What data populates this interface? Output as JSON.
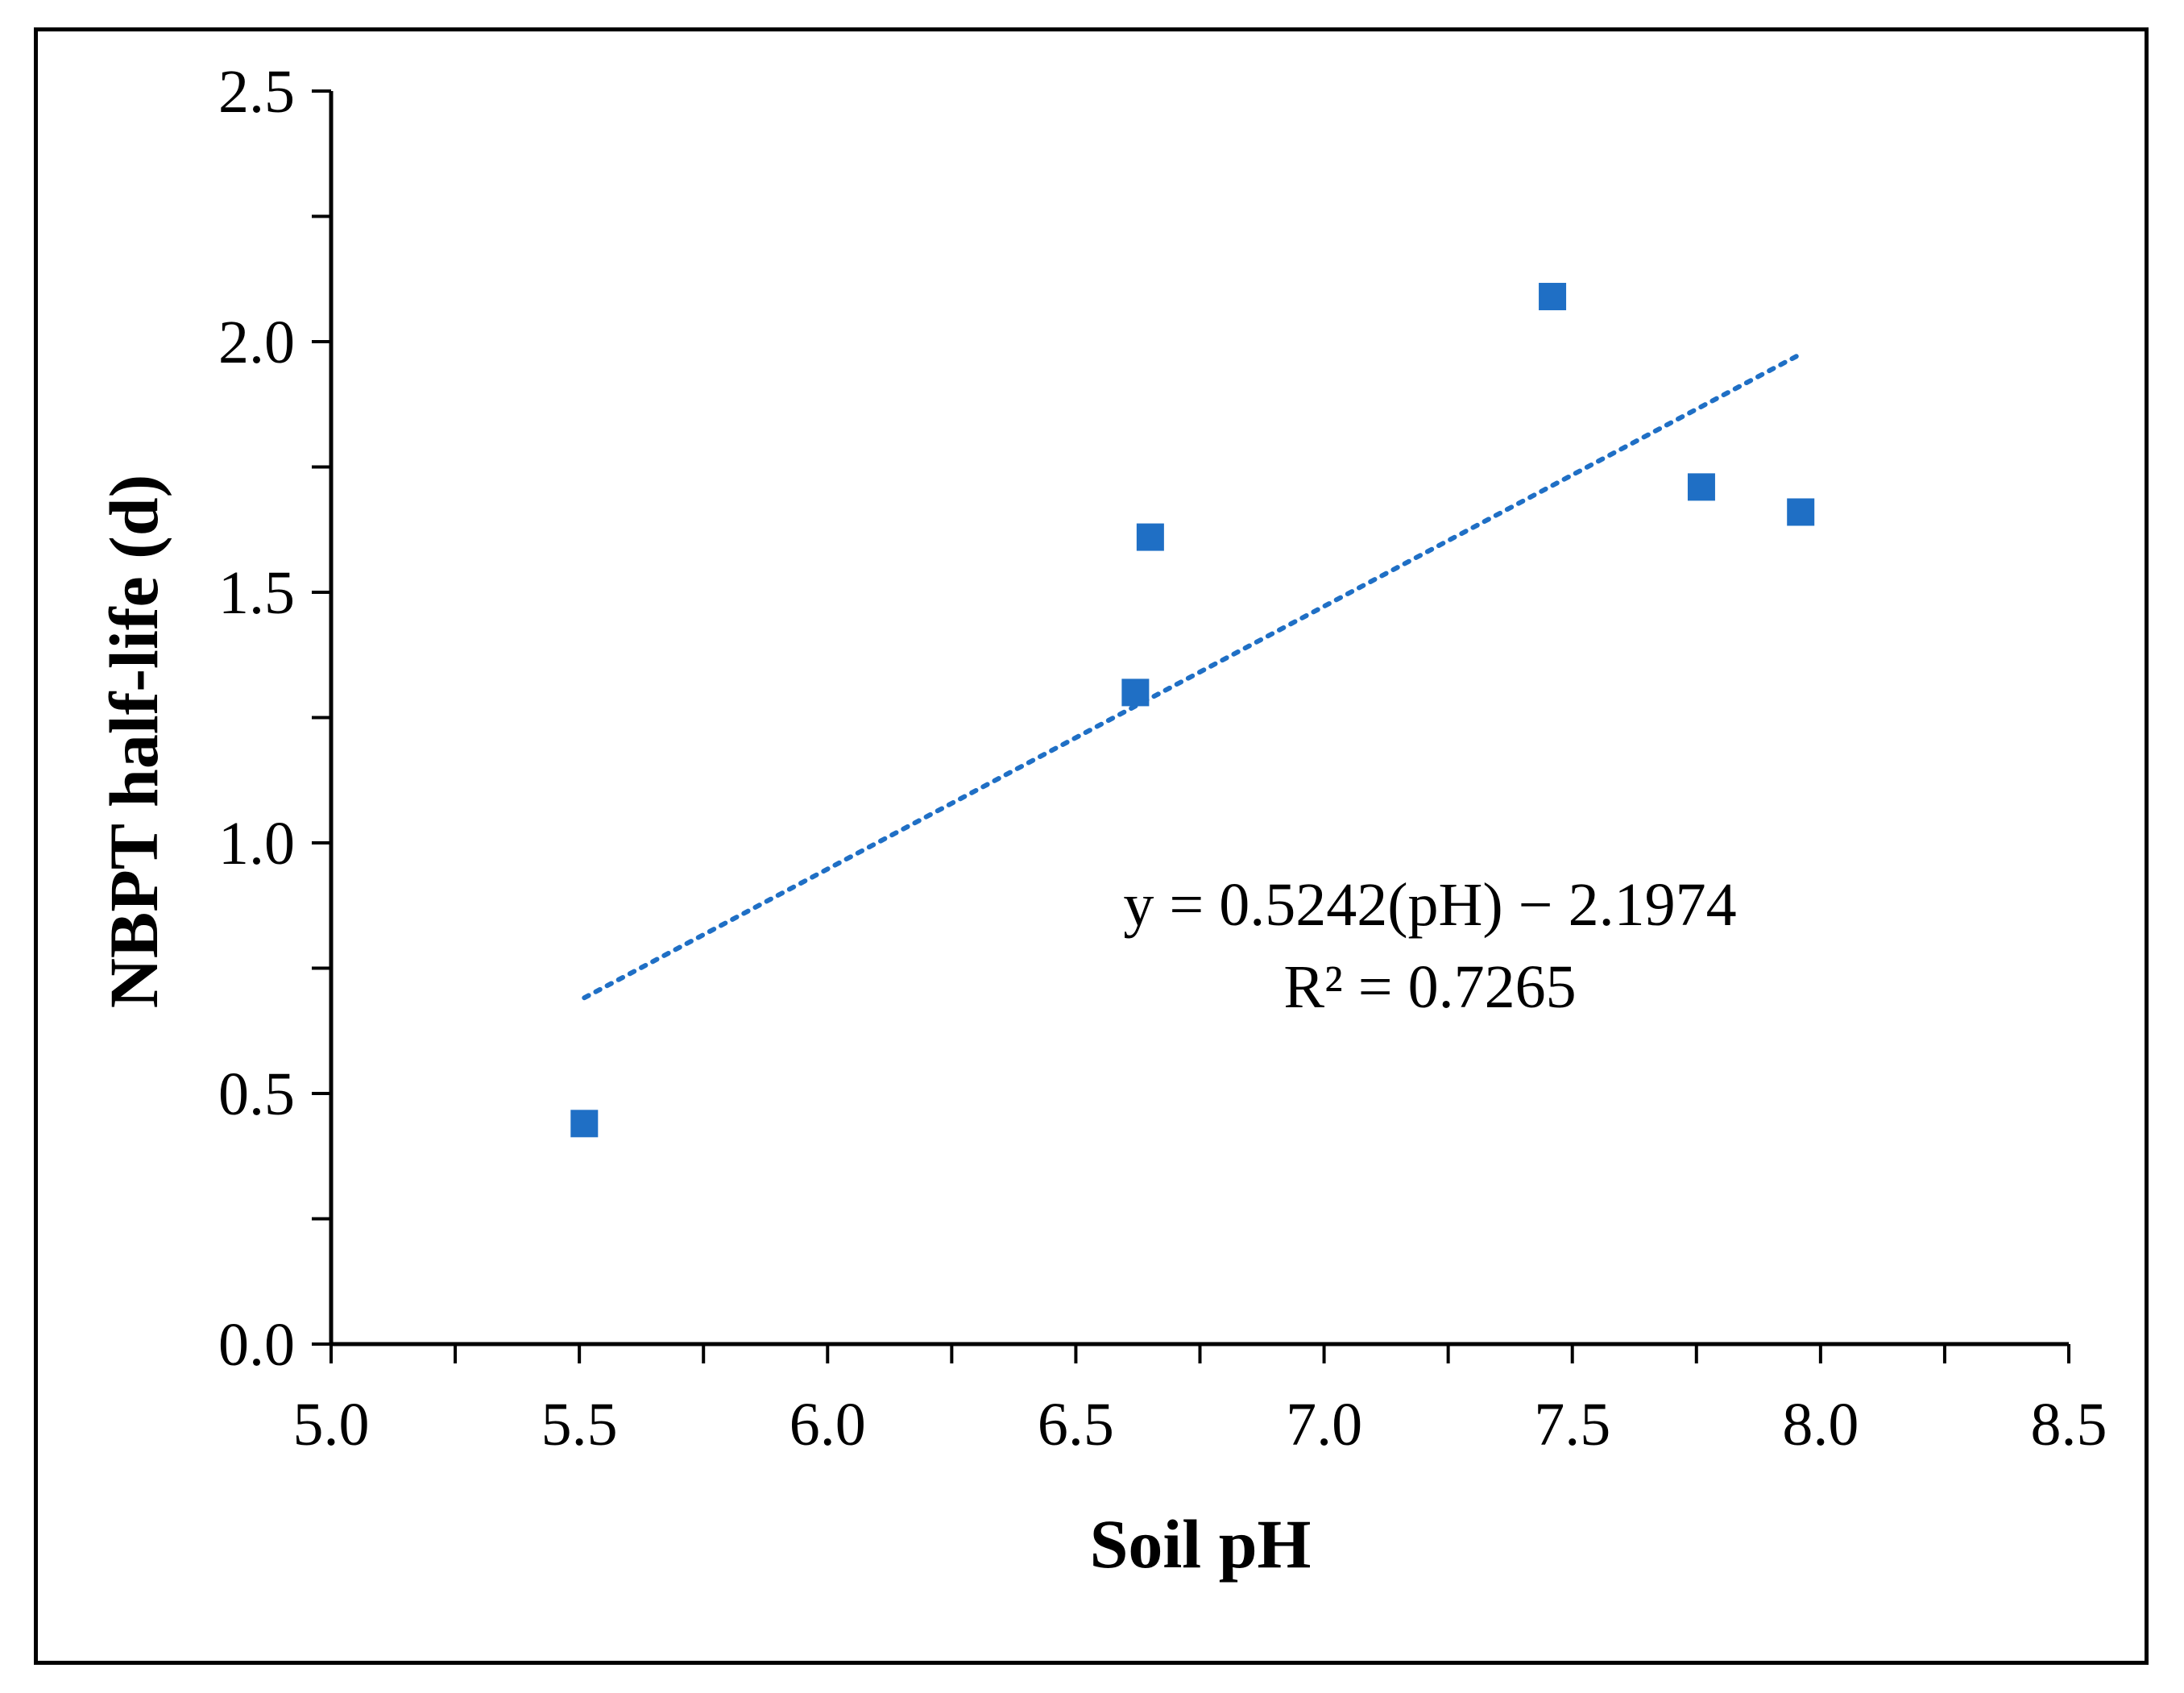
{
  "chart_data": {
    "type": "scatter",
    "title": "",
    "xlabel": "Soil pH",
    "ylabel": "NBPT half-life (d)",
    "xlim": [
      5.0,
      8.5
    ],
    "ylim": [
      0.0,
      2.5
    ],
    "x_ticks": [
      "5.0",
      "5.5",
      "6.0",
      "6.5",
      "7.0",
      "7.5",
      "8.0",
      "8.5"
    ],
    "y_ticks": [
      "0.0",
      "0.5",
      "1.0",
      "1.5",
      "2.0",
      "2.5"
    ],
    "grid": false,
    "legend": "none",
    "series": [
      {
        "marker": "square",
        "color": "#1f6fc5",
        "points": [
          {
            "x": 5.51,
            "y": 0.44
          },
          {
            "x": 6.62,
            "y": 1.3
          },
          {
            "x": 6.65,
            "y": 1.61
          },
          {
            "x": 7.46,
            "y": 2.09
          },
          {
            "x": 7.76,
            "y": 1.71
          },
          {
            "x": 7.96,
            "y": 1.66
          }
        ]
      }
    ],
    "trendline": {
      "style": "dotted",
      "color": "#1f6fc5",
      "slope": 0.5242,
      "intercept": -2.1974,
      "x_range": [
        5.51,
        7.96
      ]
    },
    "annotations": [
      "y = 0.5242(pH) − 2.1974",
      "R² = 0.7265"
    ]
  }
}
